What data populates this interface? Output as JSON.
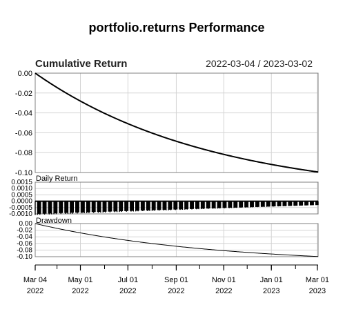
{
  "title": "portfolio.returns Performance",
  "colors": {
    "line": "#000000",
    "grid": "#d3d3d3",
    "frame": "#808080"
  },
  "chart_data": [
    {
      "panel": "cumulative",
      "type": "line",
      "title": "Cumulative Return",
      "date_range": "2022-03-04 / 2023-03-02",
      "x_start": "2022-03-04",
      "x_end": "2023-03-02",
      "ylim": [
        -0.1,
        0.0
      ],
      "yticks": [
        "0.00",
        "-0.02",
        "-0.04",
        "-0.06",
        "-0.08",
        "-0.10"
      ],
      "start_value": 0.0,
      "end_value": -0.0995,
      "grid": true
    },
    {
      "panel": "daily",
      "type": "bar",
      "title": "Daily Return",
      "ylim": [
        -0.001,
        0.0015
      ],
      "yticks": [
        "0.0015",
        "0.0010",
        "0.0005",
        "0.0000",
        "-0.0005",
        "-0.0010"
      ],
      "first_value": -0.001,
      "last_value": -0.0003,
      "grid": true
    },
    {
      "panel": "drawdown",
      "type": "line",
      "title": "Drawdown",
      "ylim": [
        -0.1,
        0.0
      ],
      "yticks": [
        "0.00",
        "-0.02",
        "-0.04",
        "-0.06",
        "-0.08",
        "-0.10"
      ],
      "start_value": 0.0,
      "end_value": -0.0995,
      "grid": true
    }
  ],
  "x_axis": {
    "ticks": [
      {
        "date": "2022-03-04",
        "line1": "Mar 04",
        "line2": "2022"
      },
      {
        "date": "2022-05-01",
        "line1": "May 01",
        "line2": "2022"
      },
      {
        "date": "2022-07-01",
        "line1": "Jul 01",
        "line2": "2022"
      },
      {
        "date": "2022-09-01",
        "line1": "Sep 01",
        "line2": "2022"
      },
      {
        "date": "2022-11-01",
        "line1": "Nov 01",
        "line2": "2022"
      },
      {
        "date": "2023-01-01",
        "line1": "Jan 01",
        "line2": "2023"
      },
      {
        "date": "2023-03-01",
        "line1": "Mar 01",
        "line2": "2023"
      }
    ]
  }
}
